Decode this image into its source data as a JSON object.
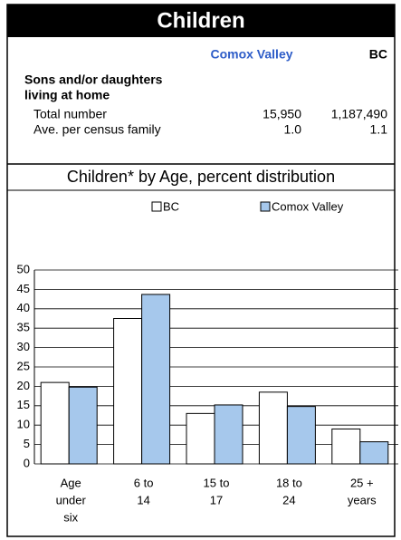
{
  "header": {
    "title": "Children"
  },
  "table": {
    "columns": [
      "Comox Valley",
      "BC"
    ],
    "section": [
      "Sons and/or daughters",
      "living at home"
    ],
    "rows": [
      [
        "Total number",
        "15,950",
        "1,187,490"
      ],
      [
        "Ave. per census family",
        "1.0",
        "1.1"
      ]
    ]
  },
  "chart_data": {
    "type": "bar",
    "title": "Children* by Age, percent distribution",
    "categories": [
      [
        "Age",
        "under",
        "six"
      ],
      [
        "6 to",
        "14"
      ],
      [
        "15 to",
        "17"
      ],
      [
        "18 to",
        "24"
      ],
      [
        "25 +",
        "years"
      ]
    ],
    "series": [
      {
        "name": "BC",
        "color": "#ffffff",
        "values": [
          21,
          37.5,
          13,
          18.5,
          9
        ]
      },
      {
        "name": "Comox Valley",
        "color": "#a6c8ec",
        "values": [
          19.8,
          43.7,
          15.2,
          14.8,
          5.7
        ]
      }
    ],
    "ylim": [
      0,
      50
    ],
    "yticks": [
      0,
      5,
      10,
      15,
      20,
      25,
      30,
      35,
      40,
      45,
      50
    ],
    "grid": true
  }
}
